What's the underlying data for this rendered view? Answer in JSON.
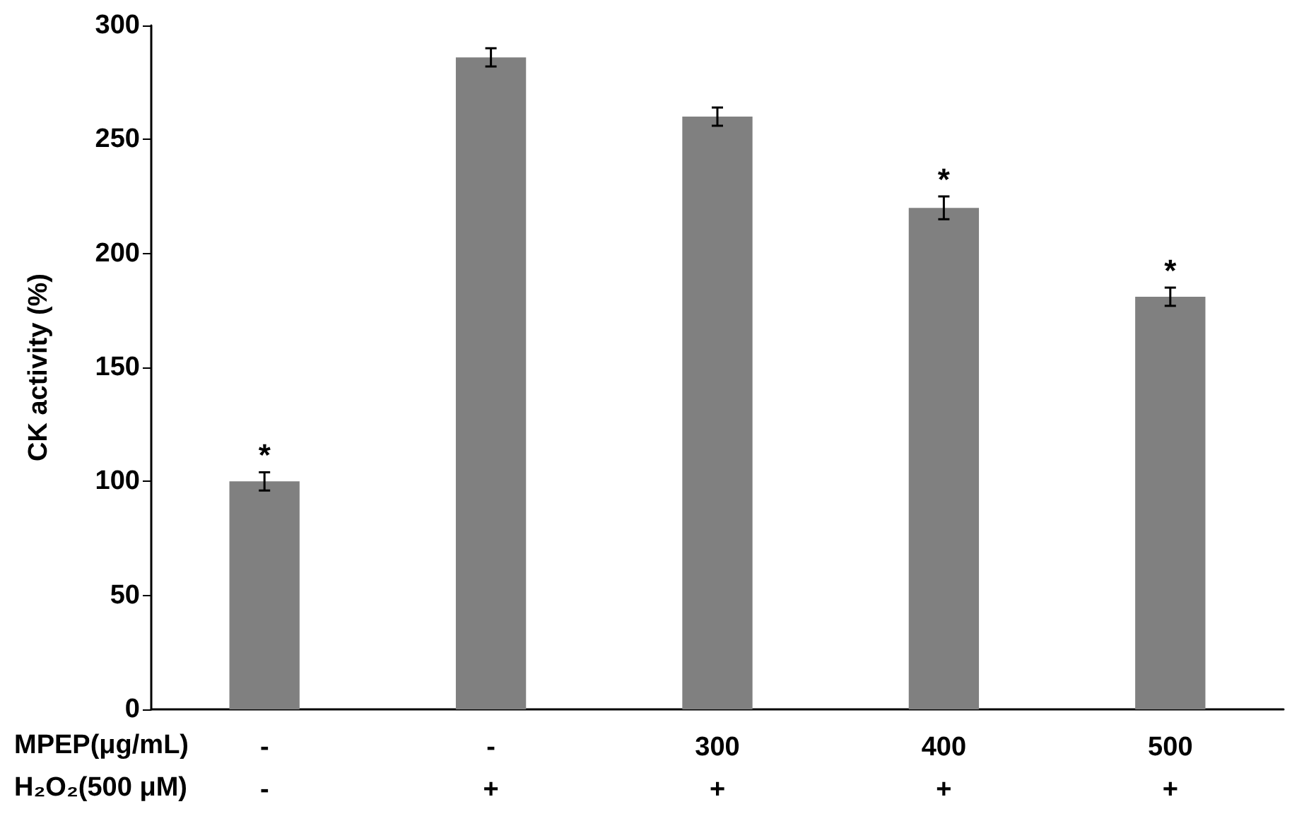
{
  "chart_data": {
    "type": "bar",
    "ylabel": "CK activity (%)",
    "categories": [
      "-\n-",
      "-\n+",
      "300\n+",
      "400\n+",
      "500\n+"
    ],
    "values": [
      100,
      286,
      260,
      220,
      181
    ],
    "errors": [
      4,
      4,
      4,
      5,
      4
    ],
    "color": "#808080",
    "ylim": [
      0,
      300
    ],
    "yticks": [
      0,
      50,
      100,
      150,
      200,
      250,
      300
    ],
    "grid": false,
    "annotations": [
      "MPEP(μg/mL)",
      "H₂O₂(500 μM)",
      {
        "text": "*",
        "x": "-\n-",
        "y": 104
      },
      {
        "text": "*",
        "x": "400\n+",
        "y": 225
      },
      {
        "text": "*",
        "x": "500\n+",
        "y": 185
      }
    ]
  }
}
